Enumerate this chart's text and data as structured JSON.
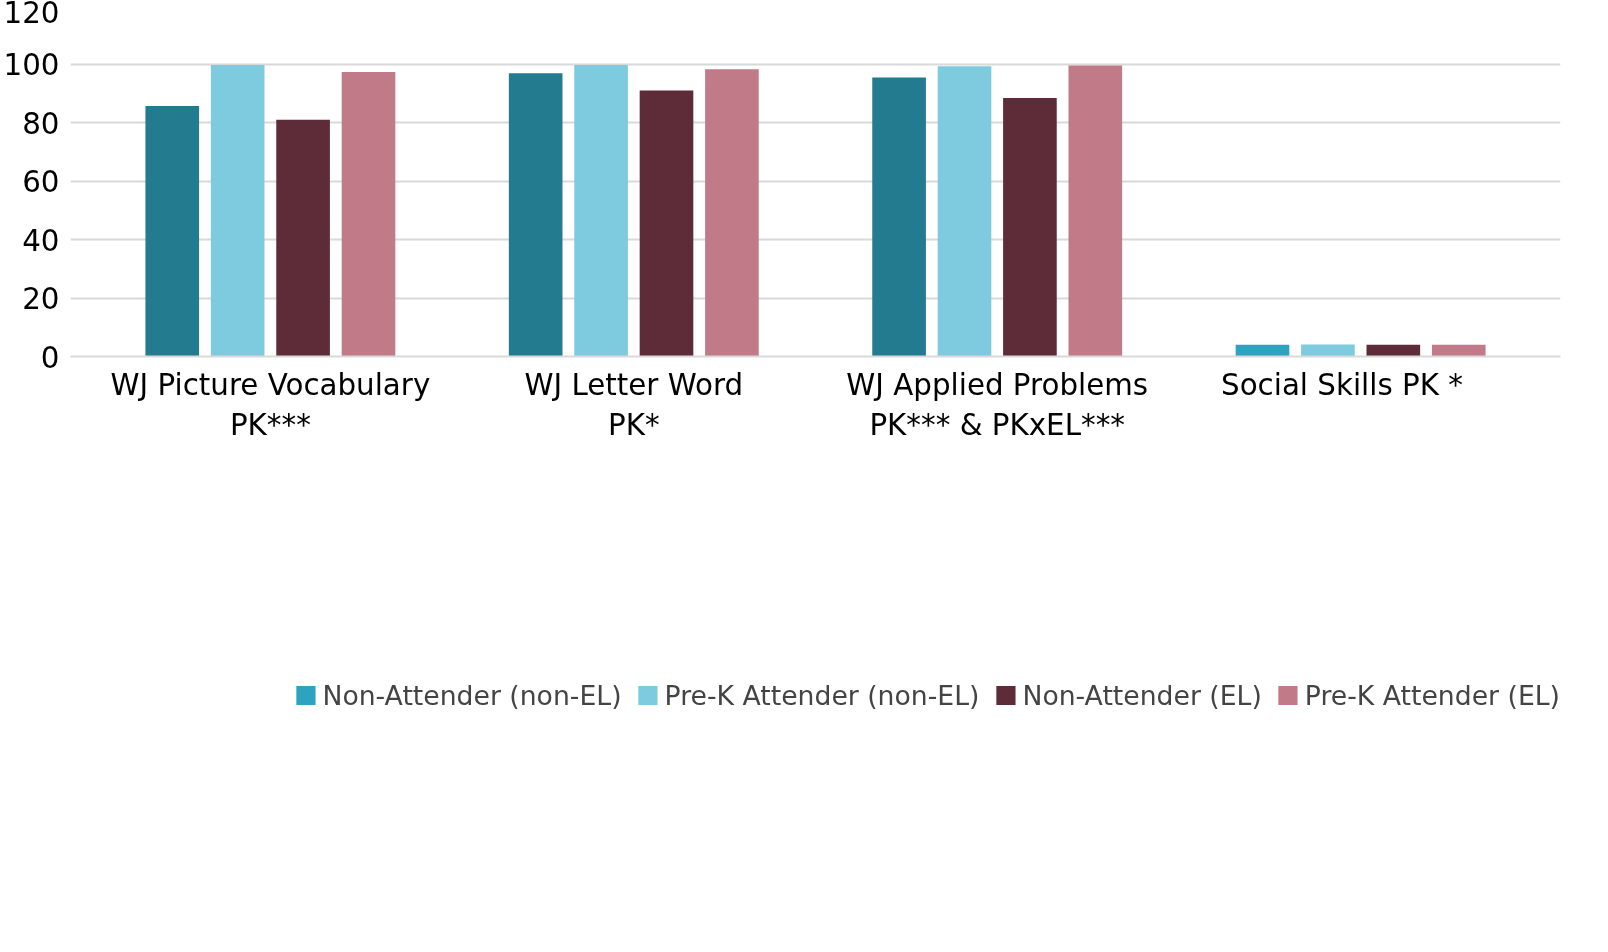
{
  "chart_data": {
    "type": "bar",
    "categories": [
      "WJ Picture Vocabulary\nPK***",
      "WJ Letter Word\nPK*",
      "WJ Applied Problems\nPK*** & PKxEL***",
      "Social Skills    PK  *"
    ],
    "series": [
      {
        "name": "Non-Attender (non-EL)",
        "color": "#2ea3c0",
        "colors": [
          "#227b8f",
          "#227b8f",
          "#227b8f",
          "#2ea3c0"
        ],
        "values": [
          85.6,
          96.8,
          95.4,
          4.0
        ]
      },
      {
        "name": "Pre-K Attender (non-EL)",
        "color": "#7ecbe0",
        "values": [
          99.7,
          99.7,
          99.2,
          4.1
        ]
      },
      {
        "name": "Non-Attender (EL)",
        "color": "#5e2c38",
        "values": [
          80.9,
          90.9,
          88.4,
          4.0
        ]
      },
      {
        "name": "Pre-K Attender (EL)",
        "color": "#c07a88",
        "values": [
          97.3,
          98.2,
          99.5,
          4.0
        ]
      }
    ],
    "ylim": [
      0,
      120
    ],
    "yticks": [
      0,
      20,
      40,
      60,
      80,
      100,
      120
    ],
    "grid": "y",
    "legend": "bottom"
  }
}
